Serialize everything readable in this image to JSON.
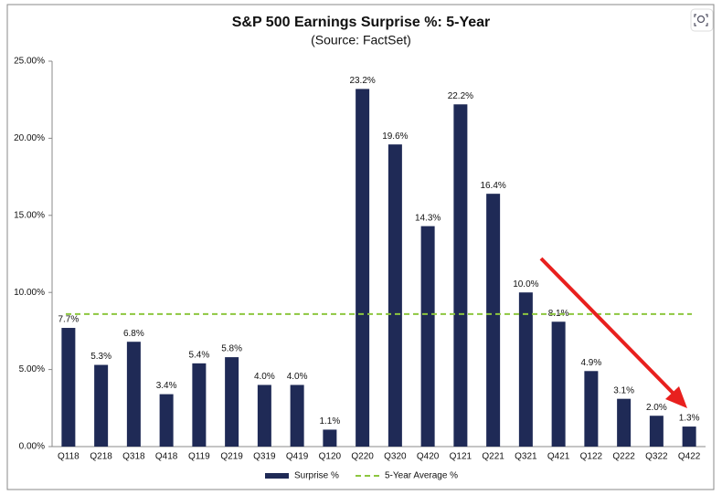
{
  "chart_data": {
    "type": "bar",
    "title": "S&P 500 Earnings Surprise %: 5-Year",
    "subtitle": "(Source: FactSet)",
    "categories": [
      "Q118",
      "Q218",
      "Q318",
      "Q418",
      "Q119",
      "Q219",
      "Q319",
      "Q419",
      "Q120",
      "Q220",
      "Q320",
      "Q420",
      "Q121",
      "Q221",
      "Q321",
      "Q421",
      "Q122",
      "Q222",
      "Q322",
      "Q422"
    ],
    "series": [
      {
        "name": "Surprise %",
        "color": "#1f2a56",
        "values": [
          7.7,
          5.3,
          6.8,
          3.4,
          5.4,
          5.8,
          4.0,
          4.0,
          1.1,
          23.2,
          19.6,
          14.3,
          22.2,
          16.4,
          10.0,
          8.1,
          4.9,
          3.1,
          2.0,
          1.3
        ],
        "value_labels": [
          "7.7%",
          "5.3%",
          "6.8%",
          "3.4%",
          "5.4%",
          "5.8%",
          "4.0%",
          "4.0%",
          "1.1%",
          "23.2%",
          "19.6%",
          "14.3%",
          "22.2%",
          "16.4%",
          "10.0%",
          "8.1%",
          "4.9%",
          "3.1%",
          "2.0%",
          "1.3%"
        ]
      }
    ],
    "average": {
      "name": "5-Year Average %",
      "color": "#8dc63f",
      "value": 8.6
    },
    "ylim": [
      0,
      25
    ],
    "yticks": [
      {
        "value": 0,
        "label": "0.00%"
      },
      {
        "value": 5,
        "label": "5.00%"
      },
      {
        "value": 10,
        "label": "10.00%"
      },
      {
        "value": 15,
        "label": "15.00%"
      },
      {
        "value": 20,
        "label": "20.00%"
      },
      {
        "value": 25,
        "label": "25.00%"
      }
    ],
    "grid": false
  }
}
